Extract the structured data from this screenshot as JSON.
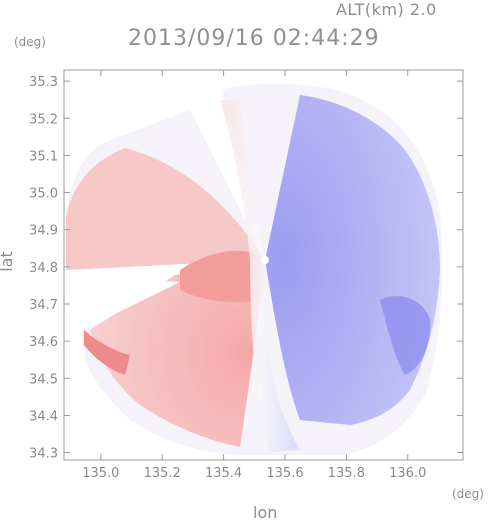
{
  "header": {
    "altitude_label": "ALT(km) 2.0",
    "datetime": "2013/09/16 02:44:29",
    "lat_unit": "(deg)",
    "lon_unit": "(deg)"
  },
  "chart_data": {
    "type": "heatmap",
    "xlabel": "lon",
    "ylabel": "lat",
    "xlim": [
      134.88,
      136.18
    ],
    "ylim": [
      34.28,
      35.33
    ],
    "x_ticks": [
      "135.0",
      "135.2",
      "135.4",
      "135.6",
      "135.8",
      "136.0"
    ],
    "y_ticks": [
      "34.3",
      "34.4",
      "34.5",
      "34.6",
      "34.7",
      "34.8",
      "34.9",
      "35.0",
      "35.1",
      "35.2",
      "35.3"
    ],
    "radar_center": {
      "lon": 135.52,
      "lat": 34.81
    },
    "colors": {
      "receding": "#f29a9a",
      "approaching": "#8888f0",
      "neutral": "#f5f5fb"
    }
  }
}
